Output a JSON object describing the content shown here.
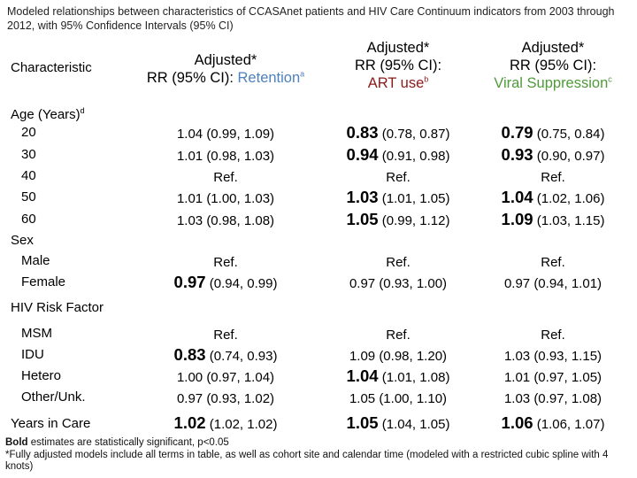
{
  "title": "Modeled relationships between characteristics of CCASAnet patients and HIV Care Continuum indicators from 2003 through 2012, with 95% Confidence Intervals (95% CI)",
  "headers": {
    "characteristic": "Characteristic",
    "col1": {
      "line1": "Adjusted*",
      "line2": "RR (95% CI): ",
      "colored": "Retention",
      "sup": "a"
    },
    "col2": {
      "line1": "Adjusted*",
      "line2": "RR (95% CI):",
      "colored": "ART use",
      "sup": "b"
    },
    "col3": {
      "line1": "Adjusted*",
      "line2": "RR (95% CI):",
      "colored": "Viral Suppression",
      "sup": "c"
    }
  },
  "sections": {
    "age": {
      "label": "Age (Years)",
      "sup": "d"
    },
    "sex": {
      "label": "Sex"
    },
    "risk": {
      "label": "HIV Risk Factor"
    },
    "years": {
      "label": "Years in Care"
    }
  },
  "rows": {
    "age20": {
      "label": "20",
      "c1": {
        "bold": "",
        "rest": "1.04 (0.99, 1.09)"
      },
      "c2": {
        "bold": "0.83",
        "rest": " (0.78, 0.87)"
      },
      "c3": {
        "bold": "0.79",
        "rest": " (0.75, 0.84)"
      }
    },
    "age30": {
      "label": "30",
      "c1": {
        "bold": "",
        "rest": "1.01 (0.98, 1.03)"
      },
      "c2": {
        "bold": "0.94",
        "rest": " (0.91, 0.98)"
      },
      "c3": {
        "bold": "0.93",
        "rest": " (0.90, 0.97)"
      }
    },
    "age40": {
      "label": "40",
      "c1": {
        "bold": "",
        "rest": "Ref."
      },
      "c2": {
        "bold": "",
        "rest": "Ref."
      },
      "c3": {
        "bold": "",
        "rest": "Ref."
      }
    },
    "age50": {
      "label": "50",
      "c1": {
        "bold": "",
        "rest": "1.01 (1.00, 1.03)"
      },
      "c2": {
        "bold": "1.03",
        "rest": " (1.01, 1.05)"
      },
      "c3": {
        "bold": "1.04",
        "rest": " (1.02, 1.06)"
      }
    },
    "age60": {
      "label": "60",
      "c1": {
        "bold": "",
        "rest": "1.03 (0.98, 1.08)"
      },
      "c2": {
        "bold": "1.05",
        "rest": " (0.99, 1.12)"
      },
      "c3": {
        "bold": "1.09",
        "rest": " (1.03, 1.15)"
      }
    },
    "male": {
      "label": "Male",
      "c1": {
        "bold": "",
        "rest": "Ref."
      },
      "c2": {
        "bold": "",
        "rest": "Ref."
      },
      "c3": {
        "bold": "",
        "rest": "Ref."
      }
    },
    "female": {
      "label": "Female",
      "c1": {
        "bold": "0.97",
        "rest": " (0.94, 0.99)"
      },
      "c2": {
        "bold": "",
        "rest": "0.97 (0.93, 1.00)"
      },
      "c3": {
        "bold": "",
        "rest": "0.97 (0.94, 1.01)"
      }
    },
    "msm": {
      "label": "MSM",
      "c1": {
        "bold": "",
        "rest": "Ref."
      },
      "c2": {
        "bold": "",
        "rest": "Ref."
      },
      "c3": {
        "bold": "",
        "rest": "Ref."
      }
    },
    "idu": {
      "label": "IDU",
      "c1": {
        "bold": "0.83",
        "rest": " (0.74, 0.93)"
      },
      "c2": {
        "bold": "",
        "rest": "1.09 (0.98, 1.20)"
      },
      "c3": {
        "bold": "",
        "rest": "1.03 (0.93, 1.15)"
      }
    },
    "hetero": {
      "label": "Hetero",
      "c1": {
        "bold": "",
        "rest": "1.00 (0.97, 1.04)"
      },
      "c2": {
        "bold": "1.04",
        "rest": " (1.01, 1.08)"
      },
      "c3": {
        "bold": "",
        "rest": "1.01 (0.97, 1.05)"
      }
    },
    "other": {
      "label": "Other/Unk.",
      "c1": {
        "bold": "",
        "rest": "0.97 (0.93, 1.02)"
      },
      "c2": {
        "bold": "",
        "rest": "1.05 (1.00, 1.10)"
      },
      "c3": {
        "bold": "",
        "rest": "1.03 (0.97, 1.08)"
      }
    },
    "years": {
      "label": "",
      "c1": {
        "bold": "1.02",
        "rest": " (1.02, 1.02)"
      },
      "c2": {
        "bold": "1.05",
        "rest": " (1.04, 1.05)"
      },
      "c3": {
        "bold": "1.06",
        "rest": " (1.06, 1.07)"
      }
    }
  },
  "footnotes": {
    "bold_word": "Bold",
    "line1_rest": " estimates are statistically significant, p<0.05",
    "line2": "*Fully adjusted models include all terms in table, as well as cohort site and calendar time (modeled with a restricted cubic spline with 4 knots)"
  },
  "colors": {
    "retention": "#4f81bd",
    "art": "#8b1a1a",
    "viral": "#4f9a3a"
  }
}
